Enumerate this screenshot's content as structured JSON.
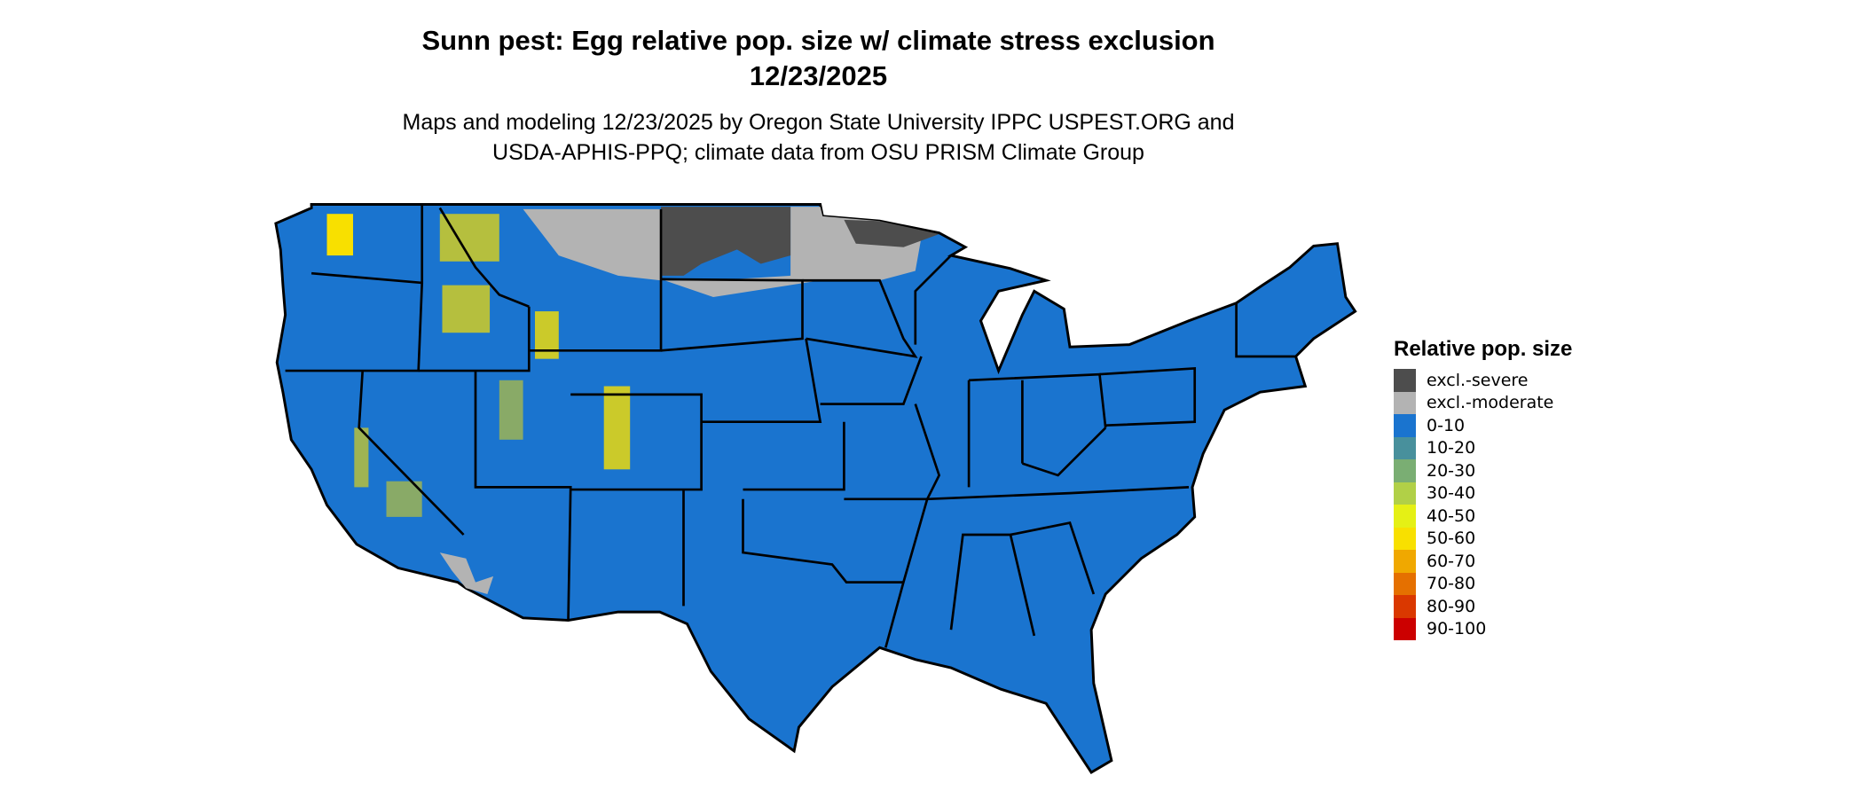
{
  "title_line1": "Sunn pest: Egg relative pop. size w/ climate stress exclusion",
  "title_line2": "12/23/2025",
  "subtitle_line1": "Maps and modeling 12/23/2025 by Oregon State University IPPC USPEST.ORG and",
  "subtitle_line2": "USDA-APHIS-PPQ; climate data from OSU PRISM Climate Group",
  "legend": {
    "title": "Relative pop. size",
    "items": [
      {
        "label": "excl.-severe",
        "color": "#4d4d4d"
      },
      {
        "label": "excl.-moderate",
        "color": "#b3b3b3"
      },
      {
        "label": "0-10",
        "color": "#1a74cf"
      },
      {
        "label": "10-20",
        "color": "#48909c"
      },
      {
        "label": "20-30",
        "color": "#7aae73"
      },
      {
        "label": "30-40",
        "color": "#b1d047"
      },
      {
        "label": "40-50",
        "color": "#e5f015"
      },
      {
        "label": "50-60",
        "color": "#f8e000"
      },
      {
        "label": "60-70",
        "color": "#f0a800"
      },
      {
        "label": "70-80",
        "color": "#e57000"
      },
      {
        "label": "80-90",
        "color": "#da3800"
      },
      {
        "label": "90-100",
        "color": "#cc0000"
      }
    ]
  },
  "map": {
    "region": "Contiguous United States",
    "dominant_class": "0-10",
    "excluded_region": "Northern Plains (Montana, North Dakota, Minnesota)"
  }
}
